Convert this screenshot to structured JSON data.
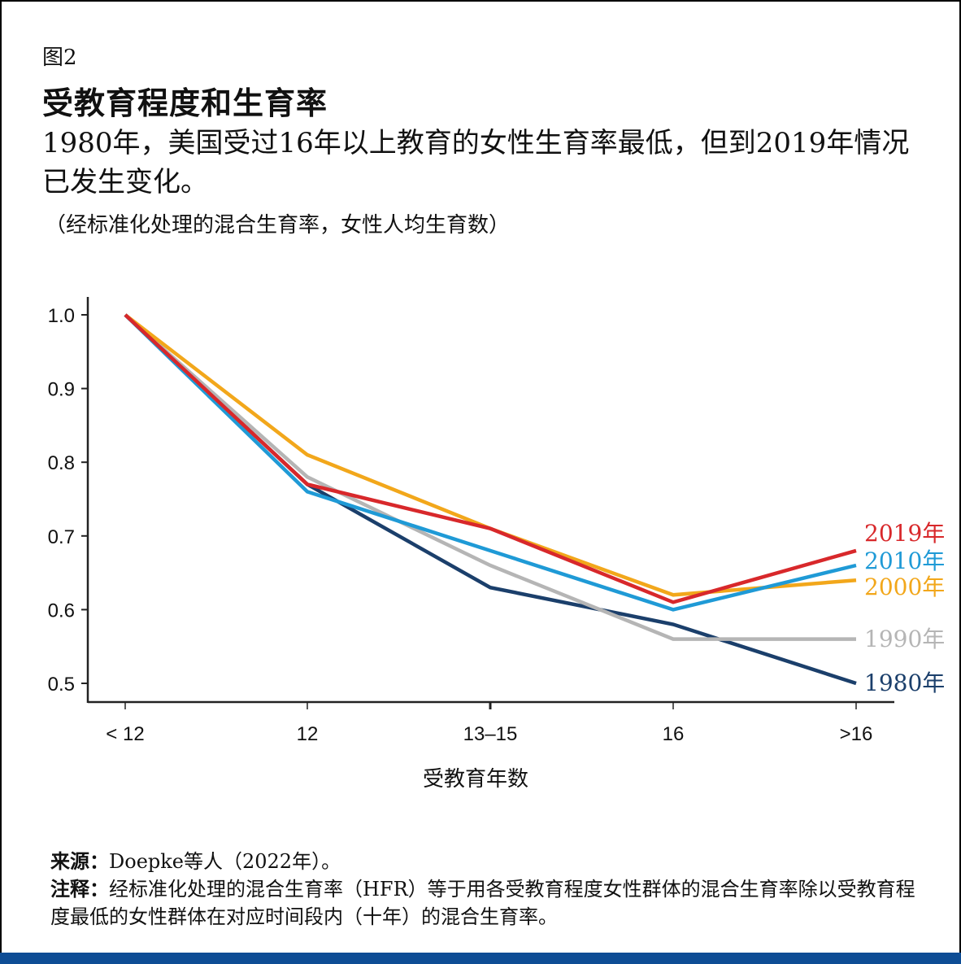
{
  "figure": {
    "label": "图2",
    "title": "受教育程度和生育率",
    "subtitle": "1980年，美国受过16年以上教育的女性生育率最低，但到2019年情况已发生变化。",
    "unit_note": "（经标准化处理的混合生育率，女性人均生育数）"
  },
  "chart_data": {
    "type": "line",
    "title": "受教育程度和生育率",
    "subtitle": "1980年，美国受过16年以上教育的女性生育率最低，但到2019年情况已发生变化。",
    "xlabel": "受教育年数",
    "ylabel": "（经标准化处理的混合生育率，女性人均生育数）",
    "categories": [
      "< 12",
      "12",
      "13–15",
      "16",
      ">16"
    ],
    "y_ticks": [
      "1.0",
      "0.9",
      "0.8",
      "0.7",
      "0.6",
      "0.5"
    ],
    "ylim": [
      0.475,
      1.02
    ],
    "grid": false,
    "legend_position": "inline-right",
    "series": [
      {
        "name": "1980年",
        "color": "#1b3f6b",
        "values": [
          1.0,
          0.77,
          0.63,
          0.58,
          0.5
        ]
      },
      {
        "name": "1990年",
        "color": "#b5b5b5",
        "values": [
          1.0,
          0.78,
          0.66,
          0.56,
          0.56
        ]
      },
      {
        "name": "2000年",
        "color": "#f2a71b",
        "values": [
          1.0,
          0.81,
          0.71,
          0.62,
          0.64
        ]
      },
      {
        "name": "2010年",
        "color": "#1f9ad6",
        "values": [
          1.0,
          0.76,
          0.68,
          0.6,
          0.66
        ]
      },
      {
        "name": "2019年",
        "color": "#d8282b",
        "values": [
          1.0,
          0.77,
          0.71,
          0.61,
          0.68
        ]
      }
    ]
  },
  "footer": {
    "source_label": "来源：",
    "source_text": "Doepke等人（2022年）。",
    "note_label": "注释：",
    "note_text": "经标准化处理的混合生育率（HFR）等于用各受教育程度女性群体的混合生育率除以受教育程度最低的女性群体在对应时间段内（十年）的混合生育率。"
  },
  "colors": {
    "bottom_bar": "#0e4d95"
  }
}
